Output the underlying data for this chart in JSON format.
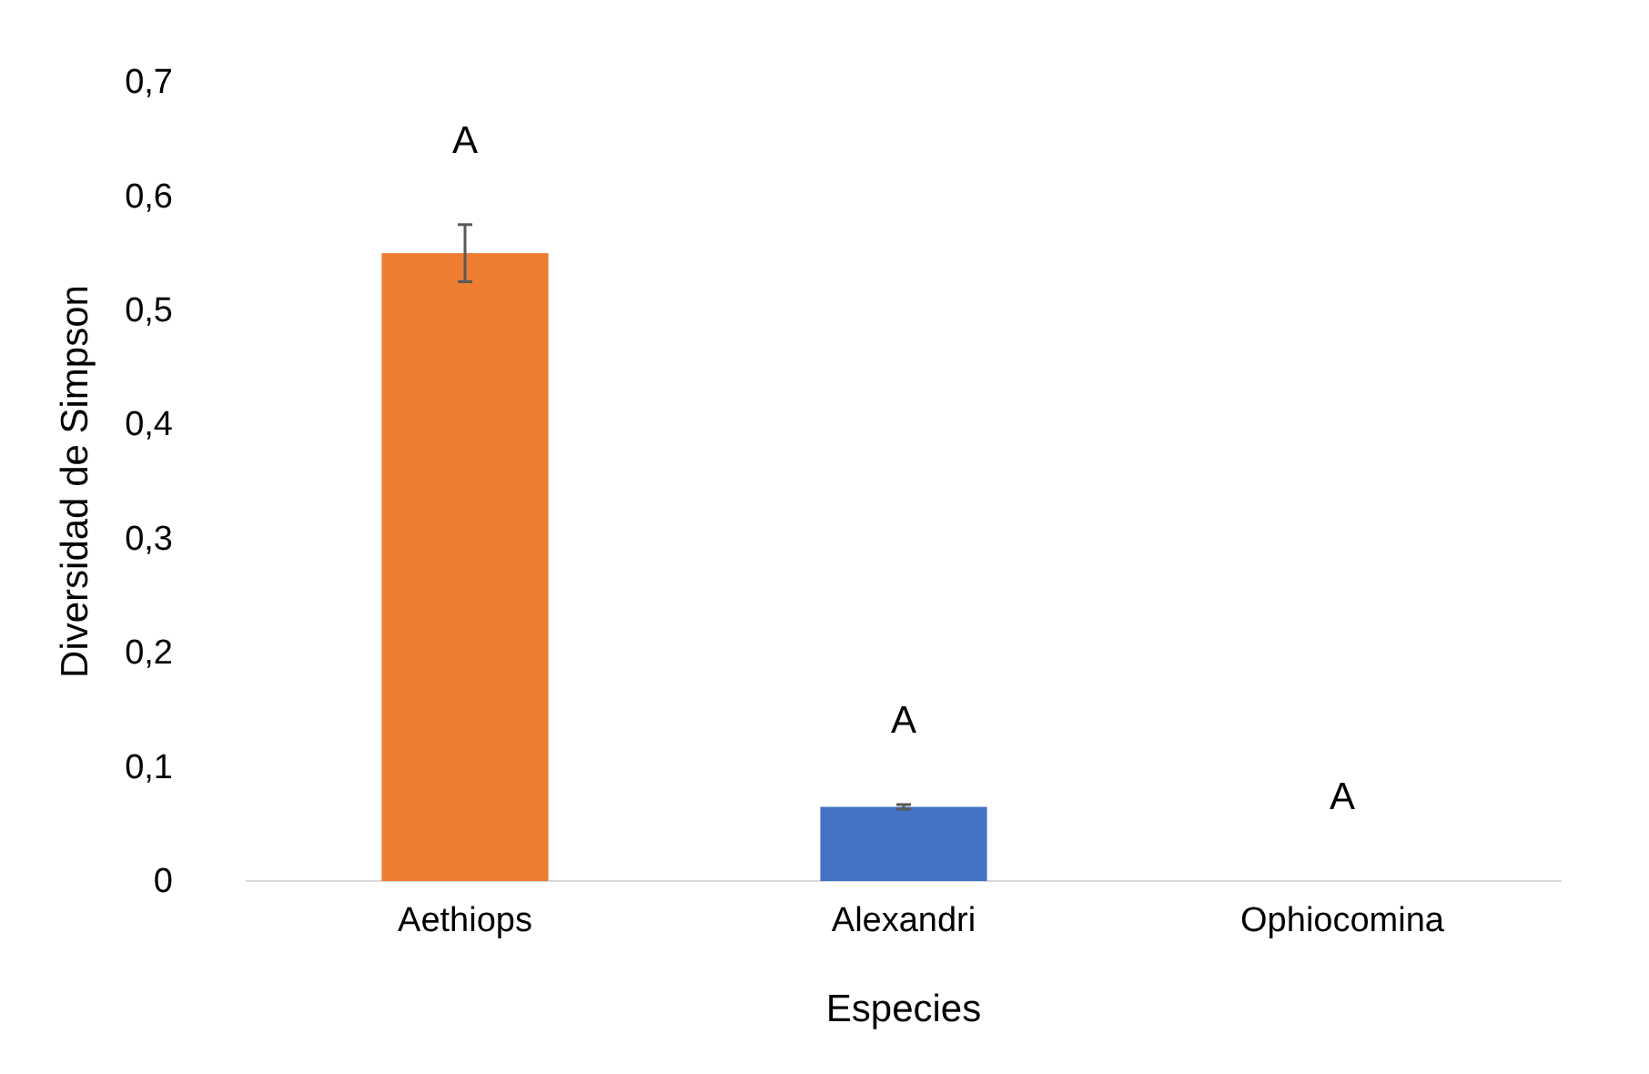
{
  "chart_data": {
    "type": "bar",
    "xlabel": "Especies",
    "ylabel": "Diversidad de Simpson",
    "categories": [
      "Aethiops",
      "Alexandri",
      "Ophiocomina"
    ],
    "values": [
      0.55,
      0.065,
      0
    ],
    "colors": [
      "#ed7d31",
      "#4472c4",
      "#a5a5a5"
    ],
    "errors": [
      0.025,
      0.002,
      null
    ],
    "ylim": [
      0,
      0.7
    ],
    "yticks": [
      {
        "value": 0,
        "label": "0"
      },
      {
        "value": 0.1,
        "label": "0,1"
      },
      {
        "value": 0.2,
        "label": "0,2"
      },
      {
        "value": 0.3,
        "label": "0,3"
      },
      {
        "value": 0.4,
        "label": "0,4"
      },
      {
        "value": 0.5,
        "label": "0,5"
      },
      {
        "value": 0.6,
        "label": "0,6"
      },
      {
        "value": 0.7,
        "label": "0,7"
      }
    ],
    "grid": false,
    "annotations": [
      "A",
      "A",
      "A"
    ]
  }
}
